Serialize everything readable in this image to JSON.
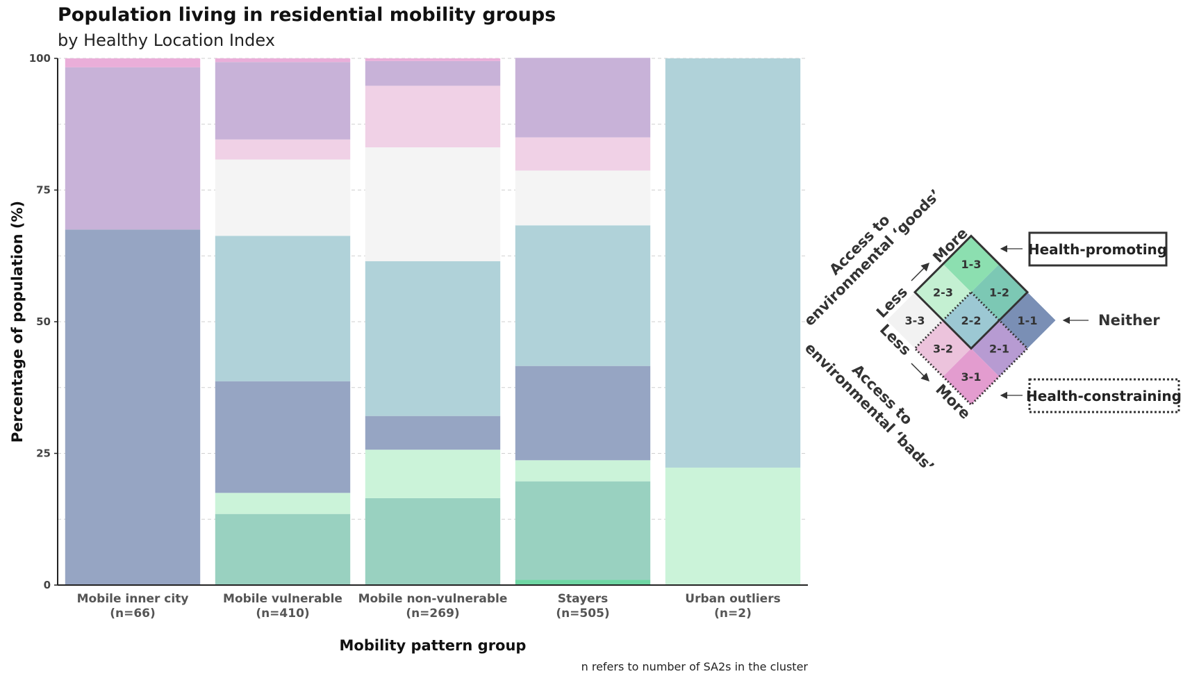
{
  "chart_data": {
    "type": "bar",
    "stacked": true,
    "title": "Population living in residential mobility groups",
    "subtitle": "by Healthy Location Index",
    "xlabel": "Mobility pattern group",
    "ylabel": "Percentage of population (%)",
    "ylim": [
      0,
      100
    ],
    "yticks": [
      0,
      25,
      50,
      75,
      100
    ],
    "grid": true,
    "note": "n refers to number of SA2s in the cluster",
    "categories": [
      "Mobile inner city\n(n=66)",
      "Mobile vulnerable\n(n=410)",
      "Mobile non-vulnerable\n(n=269)",
      "Stayers\n(n=505)",
      "Urban outliers\n(n=2)"
    ],
    "series": [
      {
        "name": "1-3",
        "color": "#6fd6a4",
        "values": [
          0,
          0,
          0,
          1,
          0
        ]
      },
      {
        "name": "1-2",
        "color": "#99d1c0",
        "values": [
          0,
          13.5,
          16.5,
          18.7,
          0
        ]
      },
      {
        "name": "2-3",
        "color": "#cbf3d9",
        "values": [
          0,
          4,
          9.2,
          4,
          22.3
        ]
      },
      {
        "name": "1-1",
        "color": "#96a5c3",
        "values": [
          67.5,
          21.2,
          6.4,
          17.9,
          0
        ]
      },
      {
        "name": "2-2",
        "color": "#b0d2d9",
        "values": [
          0,
          27.6,
          29.4,
          26.7,
          77.7
        ]
      },
      {
        "name": "3-3",
        "color": "#f4f4f4",
        "values": [
          0,
          14.5,
          21.6,
          10.4,
          0
        ]
      },
      {
        "name": "3-2",
        "color": "#f0d1e6",
        "values": [
          0,
          3.8,
          11.7,
          6.3,
          0
        ]
      },
      {
        "name": "2-1",
        "color": "#c8b2d8",
        "values": [
          30.8,
          14.7,
          4.7,
          15.1,
          0
        ]
      },
      {
        "name": "3-1",
        "color": "#eaaed9",
        "values": [
          1.7,
          0.7,
          0.5,
          0,
          0
        ]
      }
    ]
  },
  "legend": {
    "cells": [
      {
        "label": "1-3",
        "color": "#8cdfb0"
      },
      {
        "label": "2-3",
        "color": "#c4f0d2"
      },
      {
        "label": "1-2",
        "color": "#7cc8b4"
      },
      {
        "label": "3-3",
        "color": "#f2f2f2"
      },
      {
        "label": "2-2",
        "color": "#9cc8d3"
      },
      {
        "label": "1-1",
        "color": "#7a8fb5"
      },
      {
        "label": "3-2",
        "color": "#ecc3dc"
      },
      {
        "label": "2-1",
        "color": "#b79bd2"
      },
      {
        "label": "3-1",
        "color": "#e39ccf"
      }
    ],
    "goods_axis_line1": "Access to",
    "goods_axis_line2": "environmental ‘goods’",
    "bads_axis_line1": "Access to",
    "bads_axis_line2": "environmental ‘bads’",
    "less_goods": "Less",
    "more_goods": "More",
    "less_bads": "Less",
    "more_bads": "More",
    "health_promoting": "Health-promoting",
    "neither": "Neither",
    "health_constraining": "Health-constraining"
  }
}
